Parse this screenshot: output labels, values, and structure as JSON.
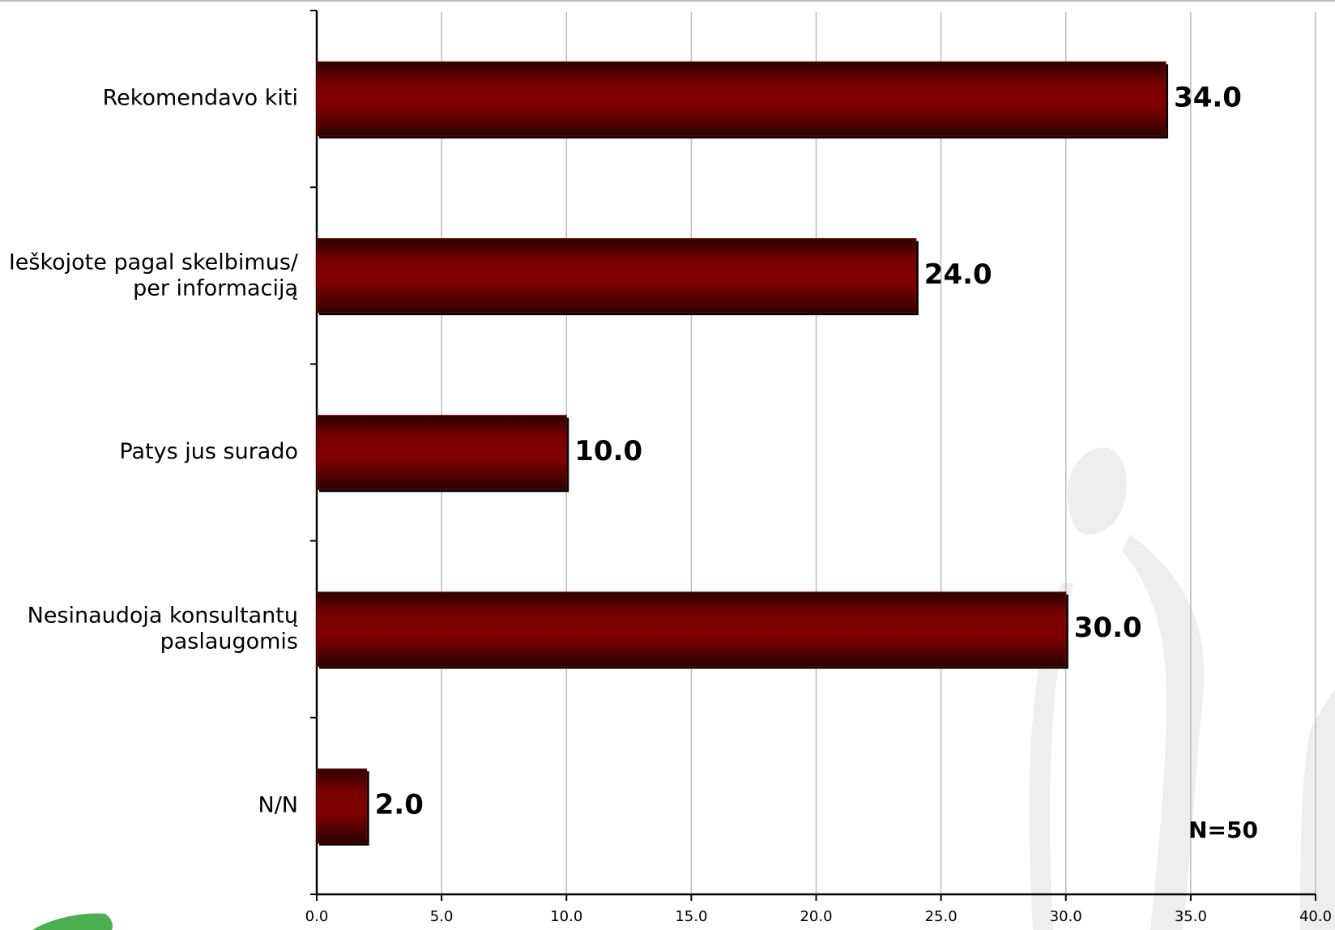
{
  "chart_data": {
    "type": "hbar",
    "categories": [
      "Rekomendavo kiti",
      "Ieškojote pagal skelbimus/\nper informaciją",
      "Patys jus surado",
      "Nesinaudoja konsultantų\npaslaugomis",
      "N/N"
    ],
    "values": [
      34,
      24,
      10,
      30,
      2
    ],
    "value_labels": [
      "34.0",
      "24.0",
      "10.0",
      "30.0",
      "2.0"
    ],
    "color": "#800000",
    "xlim": [
      0,
      40
    ],
    "xticks": [
      {
        "value": 0,
        "label": "0.0"
      },
      {
        "value": 5,
        "label": "5.0"
      },
      {
        "value": 10,
        "label": "10.0"
      },
      {
        "value": 15,
        "label": "15.0"
      },
      {
        "value": 20,
        "label": "20.0"
      },
      {
        "value": 25,
        "label": "25.0"
      },
      {
        "value": 30,
        "label": "30.0"
      },
      {
        "value": 35,
        "label": "35.0"
      },
      {
        "value": 40,
        "label": "40.0"
      }
    ],
    "grid": true,
    "annotation": "N=50"
  }
}
